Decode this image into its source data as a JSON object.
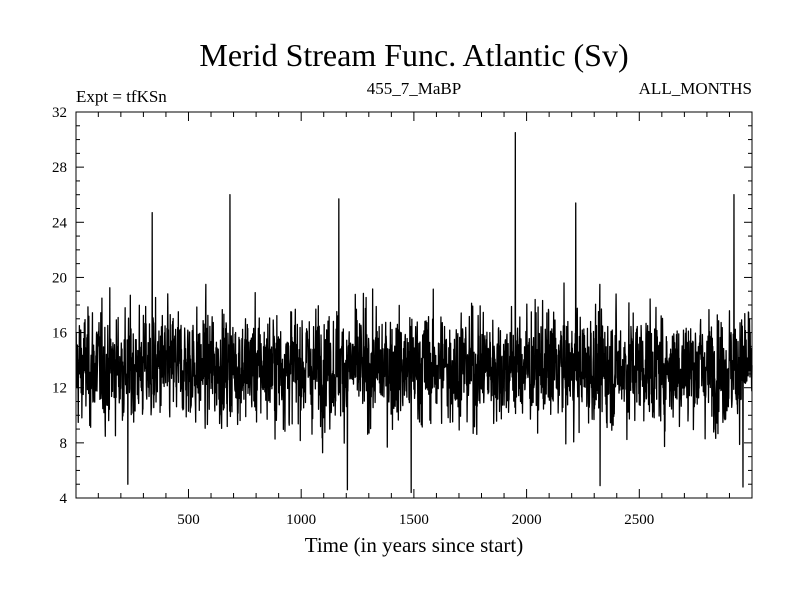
{
  "chart_data": {
    "type": "line",
    "title": "Merid Stream Func. Atlantic (Sv)",
    "subtitle_left": "Expt = tfKSn",
    "subtitle_center": "455_7_MaBP",
    "subtitle_right": "ALL_MONTHS",
    "xlabel": "Time (in years since start)",
    "ylabel": "",
    "xlim": [
      1,
      3000
    ],
    "ylim": [
      4,
      32
    ],
    "xticks": [
      500,
      1000,
      1500,
      2000,
      2500
    ],
    "yticks": [
      4,
      8,
      12,
      16,
      20,
      24,
      28,
      32
    ],
    "grid": false,
    "series": [
      {
        "color": "#000000",
        "summary": {
          "n_points": 3000,
          "mean": 13.5,
          "min": 4.5,
          "max": 30.5
        },
        "notable_points": [
          {
            "x": 231,
            "y": 5
          },
          {
            "x": 339,
            "y": 24.7
          },
          {
            "x": 684,
            "y": 26
          },
          {
            "x": 1167,
            "y": 25.7
          },
          {
            "x": 1205,
            "y": 4.6
          },
          {
            "x": 1488,
            "y": 4.4
          },
          {
            "x": 1950,
            "y": 30.5
          },
          {
            "x": 2218,
            "y": 25.4
          },
          {
            "x": 2326,
            "y": 4.9
          },
          {
            "x": 2920,
            "y": 26
          },
          {
            "x": 2960,
            "y": 4.8
          }
        ]
      }
    ]
  }
}
